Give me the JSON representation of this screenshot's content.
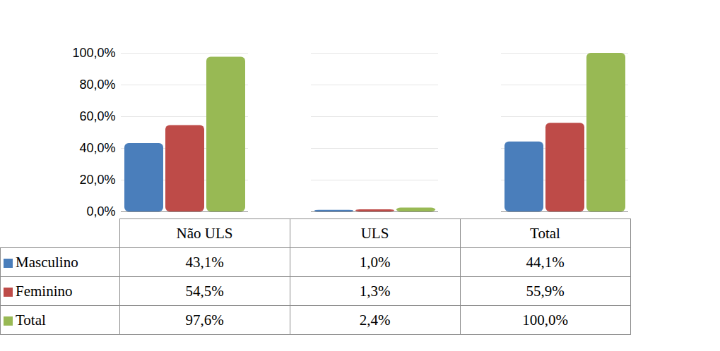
{
  "chart_data": {
    "type": "bar",
    "categories": [
      "Não ULS",
      "ULS",
      "Total"
    ],
    "series": [
      {
        "name": "Masculino",
        "color": "#4a7ebb",
        "values": [
          43.1,
          1.0,
          44.1
        ],
        "value_labels": [
          "43,1%",
          "1,0%",
          "44,1%"
        ]
      },
      {
        "name": "Feminino",
        "color": "#be4b48",
        "values": [
          54.5,
          1.3,
          55.9
        ],
        "value_labels": [
          "54,5%",
          "1,3%",
          "55,9%"
        ]
      },
      {
        "name": "Total",
        "color": "#98b954",
        "values": [
          97.6,
          2.4,
          100.0
        ],
        "value_labels": [
          "97,6%",
          "2,4%",
          "100,0%"
        ]
      }
    ],
    "ylim": [
      0,
      100
    ],
    "yticks": [
      {
        "value": 0,
        "label": "0,0%"
      },
      {
        "value": 20,
        "label": "20,0%"
      },
      {
        "value": 40,
        "label": "40,0%"
      },
      {
        "value": 60,
        "label": "60,0%"
      },
      {
        "value": 80,
        "label": "80,0%"
      },
      {
        "value": 100,
        "label": "100,0%"
      }
    ],
    "grid": true
  }
}
